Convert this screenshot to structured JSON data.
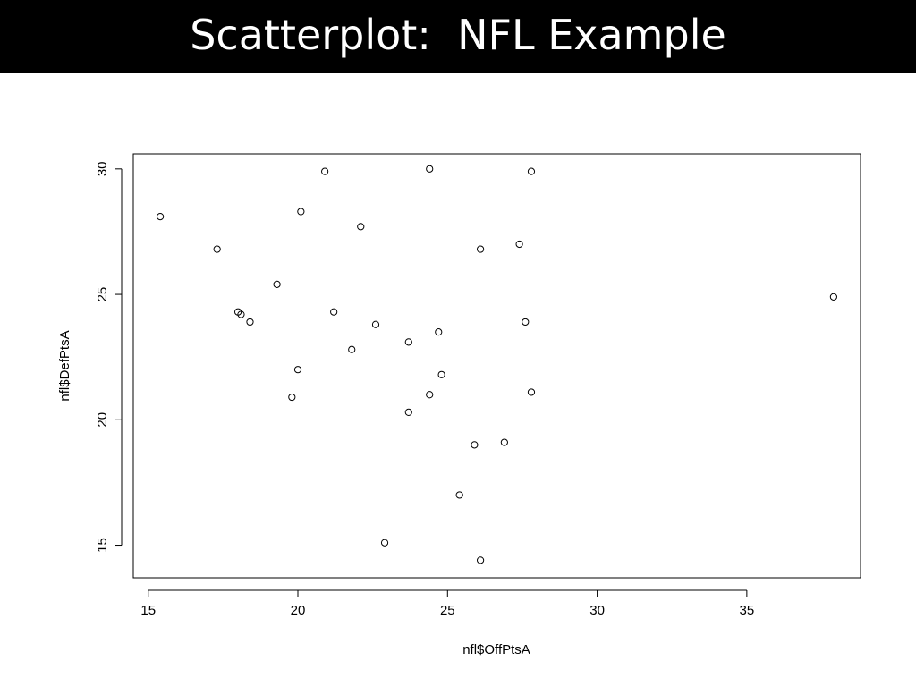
{
  "slide": {
    "title": "Scatterplot:  NFL Example"
  },
  "chart_data": {
    "type": "scatter",
    "xlabel": "nfl$OffPtsA",
    "ylabel": "nfl$DefPtsA",
    "xlim": [
      14.5,
      38.8
    ],
    "ylim": [
      13.7,
      30.6
    ],
    "x_ticks": [
      15,
      20,
      25,
      30,
      35
    ],
    "y_ticks": [
      15,
      20,
      25,
      30
    ],
    "marker": "open-circle",
    "color": "#000000",
    "points": [
      {
        "x": 15.4,
        "y": 28.1
      },
      {
        "x": 17.3,
        "y": 26.8
      },
      {
        "x": 18.0,
        "y": 24.3
      },
      {
        "x": 18.1,
        "y": 24.2
      },
      {
        "x": 18.4,
        "y": 23.9
      },
      {
        "x": 19.3,
        "y": 25.4
      },
      {
        "x": 19.8,
        "y": 20.9
      },
      {
        "x": 20.0,
        "y": 22.0
      },
      {
        "x": 20.1,
        "y": 28.3
      },
      {
        "x": 20.9,
        "y": 29.9
      },
      {
        "x": 21.2,
        "y": 24.3
      },
      {
        "x": 21.8,
        "y": 22.8
      },
      {
        "x": 22.1,
        "y": 27.7
      },
      {
        "x": 22.6,
        "y": 23.8
      },
      {
        "x": 22.9,
        "y": 15.1
      },
      {
        "x": 23.7,
        "y": 23.1
      },
      {
        "x": 23.7,
        "y": 20.3
      },
      {
        "x": 24.4,
        "y": 30.0
      },
      {
        "x": 24.4,
        "y": 21.0
      },
      {
        "x": 24.7,
        "y": 23.5
      },
      {
        "x": 24.8,
        "y": 21.8
      },
      {
        "x": 25.4,
        "y": 17.0
      },
      {
        "x": 25.9,
        "y": 19.0
      },
      {
        "x": 26.1,
        "y": 26.8
      },
      {
        "x": 26.1,
        "y": 14.4
      },
      {
        "x": 26.9,
        "y": 19.1
      },
      {
        "x": 27.4,
        "y": 27.0
      },
      {
        "x": 27.6,
        "y": 23.9
      },
      {
        "x": 27.8,
        "y": 29.9
      },
      {
        "x": 27.8,
        "y": 21.1
      },
      {
        "x": 37.9,
        "y": 24.9
      }
    ]
  }
}
